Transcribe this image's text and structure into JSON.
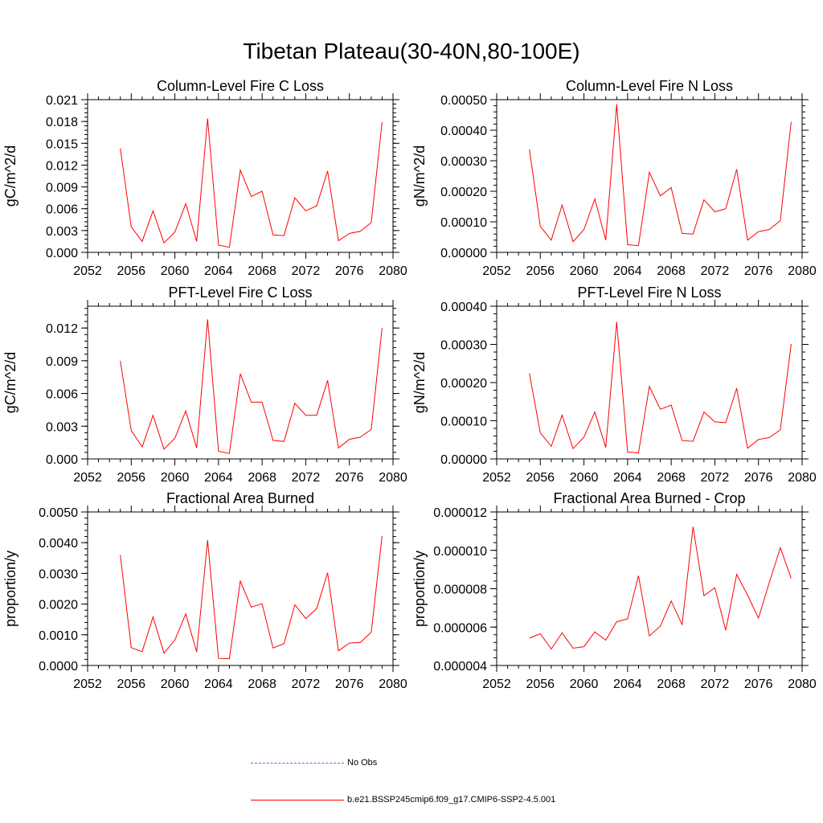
{
  "title": "Tibetan Plateau(30-40N,80-100E)",
  "colors": {
    "model": "#ff0000",
    "obs": "#6666cc"
  },
  "legend": [
    {
      "label": "No Obs",
      "style": "dashed",
      "color": "#6666cc"
    },
    {
      "label": "b.e21.BSSP245cmip6.f09_g17.CMIP6-SSP2-4.5.001",
      "style": "solid",
      "color": "#ff0000"
    }
  ],
  "chart_data": [
    {
      "type": "line",
      "title": "Column-Level Fire C Loss",
      "ylabel": "gC/m^2/d",
      "xlim": [
        2052,
        2080
      ],
      "ylim": [
        0,
        0.021
      ],
      "xticks": [
        "2052",
        "2056",
        "2060",
        "2064",
        "2068",
        "2072",
        "2076",
        "2080"
      ],
      "yticks": [
        "0.000",
        "0.003",
        "0.006",
        "0.009",
        "0.012",
        "0.015",
        "0.018",
        "0.021"
      ],
      "x": [
        2055,
        2056,
        2057,
        2058,
        2059,
        2060,
        2061,
        2062,
        2063,
        2064,
        2065,
        2066,
        2067,
        2068,
        2069,
        2070,
        2071,
        2072,
        2073,
        2074,
        2075,
        2076,
        2077,
        2078,
        2079
      ],
      "series": [
        {
          "values": [
            0.0143,
            0.0035,
            0.0015,
            0.0057,
            0.0013,
            0.0028,
            0.0067,
            0.0015,
            0.0184,
            0.001,
            0.0007,
            0.0113,
            0.0077,
            0.0084,
            0.0024,
            0.0023,
            0.0075,
            0.0057,
            0.0064,
            0.0112,
            0.0016,
            0.0026,
            0.0029,
            0.0041,
            0.0179
          ]
        }
      ]
    },
    {
      "type": "line",
      "title": "Column-Level Fire N Loss",
      "ylabel": "gN/m^2/d",
      "xlim": [
        2052,
        2080
      ],
      "ylim": [
        0,
        0.0005
      ],
      "xticks": [
        "2052",
        "2056",
        "2060",
        "2064",
        "2068",
        "2072",
        "2076",
        "2080"
      ],
      "yticks": [
        "0.00000",
        "0.00010",
        "0.00020",
        "0.00030",
        "0.00040",
        "0.00050"
      ],
      "x": [
        2055,
        2056,
        2057,
        2058,
        2059,
        2060,
        2061,
        2062,
        2063,
        2064,
        2065,
        2066,
        2067,
        2068,
        2069,
        2070,
        2071,
        2072,
        2073,
        2074,
        2075,
        2076,
        2077,
        2078,
        2079
      ],
      "series": [
        {
          "values": [
            0.000337,
            8.5e-05,
            4e-05,
            0.000155,
            3.5e-05,
            7.5e-05,
            0.000175,
            4e-05,
            0.000485,
            2.5e-05,
            2.2e-05,
            0.000262,
            0.000185,
            0.000212,
            6.2e-05,
            6e-05,
            0.000172,
            0.000133,
            0.000143,
            0.000272,
            4e-05,
            6.8e-05,
            7.5e-05,
            0.000104,
            0.000427
          ]
        }
      ]
    },
    {
      "type": "line",
      "title": "PFT-Level Fire C Loss",
      "ylabel": "gC/m^2/d",
      "xlim": [
        2052,
        2080
      ],
      "ylim": [
        0,
        0.014
      ],
      "xticks": [
        "2052",
        "2056",
        "2060",
        "2064",
        "2068",
        "2072",
        "2076",
        "2080"
      ],
      "yticks": [
        "0.000",
        "0.003",
        "0.006",
        "0.009",
        "0.012"
      ],
      "x": [
        2055,
        2056,
        2057,
        2058,
        2059,
        2060,
        2061,
        2062,
        2063,
        2064,
        2065,
        2066,
        2067,
        2068,
        2069,
        2070,
        2071,
        2072,
        2073,
        2074,
        2075,
        2076,
        2077,
        2078,
        2079
      ],
      "series": [
        {
          "values": [
            0.009,
            0.0026,
            0.0011,
            0.004,
            0.0009,
            0.0019,
            0.0044,
            0.001,
            0.0128,
            0.0007,
            0.0005,
            0.0078,
            0.0052,
            0.0052,
            0.0017,
            0.0016,
            0.0051,
            0.004,
            0.004,
            0.0072,
            0.001,
            0.0018,
            0.002,
            0.0027,
            0.012
          ]
        }
      ]
    },
    {
      "type": "line",
      "title": "PFT-Level Fire N Loss",
      "ylabel": "gN/m^2/d",
      "xlim": [
        2052,
        2080
      ],
      "ylim": [
        0,
        0.0004
      ],
      "xticks": [
        "2052",
        "2056",
        "2060",
        "2064",
        "2068",
        "2072",
        "2076",
        "2080"
      ],
      "yticks": [
        "0.00000",
        "0.00010",
        "0.00020",
        "0.00030",
        "0.00040"
      ],
      "x": [
        2055,
        2056,
        2057,
        2058,
        2059,
        2060,
        2061,
        2062,
        2063,
        2064,
        2065,
        2066,
        2067,
        2068,
        2069,
        2070,
        2071,
        2072,
        2073,
        2074,
        2075,
        2076,
        2077,
        2078,
        2079
      ],
      "series": [
        {
          "values": [
            0.000224,
            6.8e-05,
            3.3e-05,
            0.000115,
            2.7e-05,
            5.7e-05,
            0.000123,
            3e-05,
            0.000359,
            1.8e-05,
            1.6e-05,
            0.00019,
            0.00013,
            0.000141,
            4.8e-05,
            4.6e-05,
            0.000123,
            9.7e-05,
            9.5e-05,
            0.000185,
            2.8e-05,
            5.1e-05,
            5.6e-05,
            7.6e-05,
            0.000301
          ]
        }
      ]
    },
    {
      "type": "line",
      "title": "Fractional Area Burned",
      "ylabel": "proportion/y",
      "xlim": [
        2052,
        2080
      ],
      "ylim": [
        0,
        0.005
      ],
      "xticks": [
        "2052",
        "2056",
        "2060",
        "2064",
        "2068",
        "2072",
        "2076",
        "2080"
      ],
      "yticks": [
        "0.0000",
        "0.0010",
        "0.0020",
        "0.0030",
        "0.0040",
        "0.0050"
      ],
      "x": [
        2055,
        2056,
        2057,
        2058,
        2059,
        2060,
        2061,
        2062,
        2063,
        2064,
        2065,
        2066,
        2067,
        2068,
        2069,
        2070,
        2071,
        2072,
        2073,
        2074,
        2075,
        2076,
        2077,
        2078,
        2079
      ],
      "series": [
        {
          "values": [
            0.0036,
            0.00058,
            0.00045,
            0.00158,
            0.0004,
            0.00083,
            0.00168,
            0.00044,
            0.00408,
            0.00023,
            0.00022,
            0.00275,
            0.0019,
            0.00201,
            0.00057,
            0.00071,
            0.00198,
            0.00153,
            0.00185,
            0.00302,
            0.00048,
            0.00073,
            0.00075,
            0.00108,
            0.00422
          ]
        }
      ]
    },
    {
      "type": "line",
      "title": "Fractional Area Burned - Crop",
      "ylabel": "proportion/y",
      "xlim": [
        2052,
        2080
      ],
      "ylim": [
        4e-06,
        1.2e-05
      ],
      "xticks": [
        "2052",
        "2056",
        "2060",
        "2064",
        "2068",
        "2072",
        "2076",
        "2080"
      ],
      "yticks": [
        "0.000004",
        "0.000006",
        "0.000008",
        "0.000010",
        "0.000012"
      ],
      "x": [
        2055,
        2056,
        2057,
        2058,
        2059,
        2060,
        2061,
        2062,
        2063,
        2064,
        2065,
        2066,
        2067,
        2068,
        2069,
        2070,
        2071,
        2072,
        2073,
        2074,
        2075,
        2076,
        2077,
        2078,
        2079
      ],
      "series": [
        {
          "values": [
            5.43e-06,
            5.65e-06,
            4.86e-06,
            5.7e-06,
            4.9e-06,
            4.98e-06,
            5.75e-06,
            5.32e-06,
            6.28e-06,
            6.43e-06,
            8.68e-06,
            5.54e-06,
            6.05e-06,
            7.36e-06,
            6.13e-06,
            1.123e-05,
            7.64e-06,
            8.05e-06,
            5.83e-06,
            8.75e-06,
            7.67e-06,
            6.47e-06,
            8.34e-06,
            1.013e-05,
            8.54e-06
          ]
        }
      ]
    }
  ]
}
